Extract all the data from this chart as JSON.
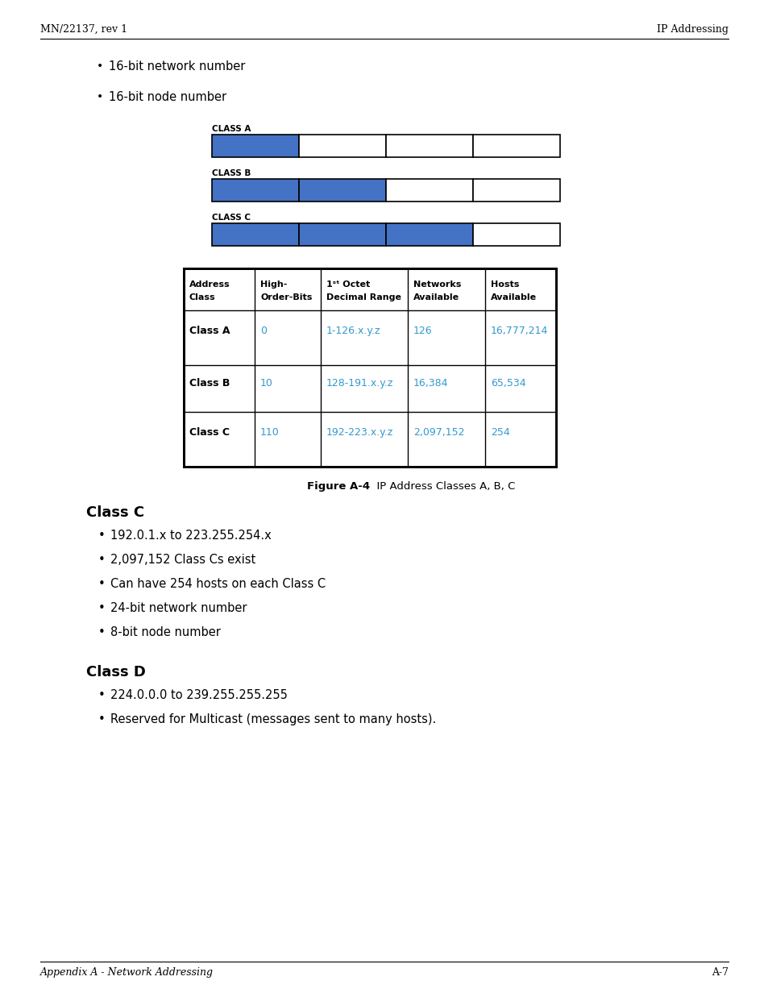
{
  "header_left": "MN/22137, rev 1",
  "header_right": "IP Addressing",
  "footer_left": "Appendix A - Network Addressing",
  "footer_right": "A-7",
  "bullet_intro": [
    "16-bit network number",
    "16-bit node number"
  ],
  "class_bars": [
    {
      "label": "CLASS A",
      "blue_segments": 1,
      "total_segments": 4
    },
    {
      "label": "CLASS B",
      "blue_segments": 2,
      "total_segments": 4
    },
    {
      "label": "CLASS C",
      "blue_segments": 3,
      "total_segments": 4
    }
  ],
  "blue_color": "#4472C4",
  "table_headers": [
    "Address\nClass",
    "High-\nOrder-Bits",
    "1ˢᵗ Octet\nDecimal Range",
    "Networks\nAvailable",
    "Hosts\nAvailable"
  ],
  "table_rows": [
    [
      "Class A",
      "0",
      "1-126.x.y.z",
      "126",
      "16,777,214"
    ],
    [
      "Class B",
      "10",
      "128-191.x.y.z",
      "16,384",
      "65,534"
    ],
    [
      "Class C",
      "110",
      "192-223.x.y.z",
      "2,097,152",
      "254"
    ]
  ],
  "table_blue_cols": [
    1,
    2,
    3,
    4
  ],
  "figure_caption_bold": "Figure A-4",
  "figure_caption_normal": "  IP Address Classes A, B, C",
  "section_c_title": "Class C",
  "section_c_bullets": [
    "192.0.1.x to 223.255.254.x",
    "2,097,152 Class Cs exist",
    "Can have 254 hosts on each Class C",
    "24-bit network number",
    "8-bit node number"
  ],
  "section_d_title": "Class D",
  "section_d_bullets": [
    "224.0.0.0 to 239.255.255.255",
    "Reserved for Multicast (messages sent to many hosts)."
  ],
  "text_color_black": "#000000",
  "text_color_blue": "#3399CC",
  "bg_color": "#FFFFFF"
}
